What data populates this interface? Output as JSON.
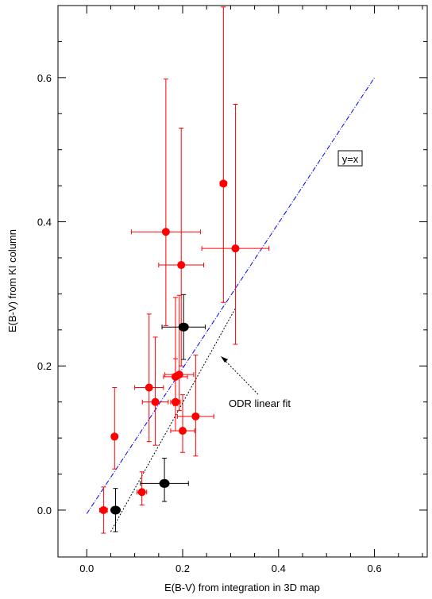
{
  "chart_data": {
    "type": "scatter",
    "xlabel": "E(B-V) from integration in 3D map",
    "ylabel": "E(B-V) from KI column",
    "xlim": [
      -0.06,
      0.71
    ],
    "ylim": [
      -0.065,
      0.7
    ],
    "xticks": [
      0.0,
      0.2,
      0.4,
      0.6
    ],
    "yticks": [
      0.0,
      0.2,
      0.4,
      0.6
    ],
    "tick_labels_x": [
      "0.0",
      "0.2",
      "0.4",
      "0.6"
    ],
    "tick_labels_y": [
      "0.0",
      "0.2",
      "0.4",
      "0.6"
    ],
    "grid": false,
    "series": [
      {
        "color": "#ff0000",
        "points": [
          {
            "x": 0.035,
            "y": 0.0,
            "xerr": 0.008,
            "yerr_low": 0.032,
            "yerr_high": 0.032
          },
          {
            "x": 0.058,
            "y": 0.102,
            "xerr": 0.006,
            "yerr_low": 0.045,
            "yerr_high": 0.068
          },
          {
            "x": 0.115,
            "y": 0.025,
            "xerr": 0.01,
            "yerr_low": 0.018,
            "yerr_high": 0.028
          },
          {
            "x": 0.13,
            "y": 0.17,
            "xerr": 0.03,
            "yerr_low": 0.075,
            "yerr_high": 0.102
          },
          {
            "x": 0.143,
            "y": 0.15,
            "xerr": 0.027,
            "yerr_low": 0.06,
            "yerr_high": 0.09
          },
          {
            "x": 0.165,
            "y": 0.386,
            "xerr": 0.072,
            "yerr_low": 0.13,
            "yerr_high": 0.212
          },
          {
            "x": 0.185,
            "y": 0.185,
            "xerr": 0.025,
            "yerr_low": 0.04,
            "yerr_high": 0.11
          },
          {
            "x": 0.185,
            "y": 0.15,
            "xerr": 0.01,
            "yerr_low": 0.04,
            "yerr_high": 0.06
          },
          {
            "x": 0.193,
            "y": 0.188,
            "xerr": 0.03,
            "yerr_low": 0.05,
            "yerr_high": 0.11
          },
          {
            "x": 0.197,
            "y": 0.34,
            "xerr": 0.047,
            "yerr_low": 0.14,
            "yerr_high": 0.19
          },
          {
            "x": 0.2,
            "y": 0.11,
            "xerr": 0.025,
            "yerr_low": 0.03,
            "yerr_high": 0.05
          },
          {
            "x": 0.227,
            "y": 0.13,
            "xerr": 0.038,
            "yerr_low": 0.055,
            "yerr_high": 0.085
          },
          {
            "x": 0.285,
            "y": 0.453,
            "xerr": 0.007,
            "yerr_low": 0.165,
            "yerr_high": 0.245
          },
          {
            "x": 0.31,
            "y": 0.363,
            "xerr": 0.07,
            "yerr_low": 0.133,
            "yerr_high": 0.2
          }
        ]
      },
      {
        "color": "#000000",
        "points": [
          {
            "x": 0.06,
            "y": 0.0,
            "xerr": 0.0,
            "yerr_low": 0.03,
            "yerr_high": 0.03
          },
          {
            "x": 0.162,
            "y": 0.037,
            "xerr": 0.05,
            "yerr_low": 0.025,
            "yerr_high": 0.035
          },
          {
            "x": 0.202,
            "y": 0.254,
            "xerr": 0.045,
            "yerr_low": 0.045,
            "yerr_high": 0.045
          }
        ]
      }
    ],
    "lines": [
      {
        "color": "#0000ff",
        "style": "dash-dot",
        "x1": 0.0,
        "y1": -0.005,
        "x2": 0.6,
        "y2": 0.6
      },
      {
        "color": "#000000",
        "style": "dotted",
        "x1": 0.05,
        "y1": -0.03,
        "x2": 0.31,
        "y2": 0.28
      }
    ],
    "annotations": {
      "yx_label": "y=x",
      "fit_label": "ODR linear fit"
    }
  }
}
